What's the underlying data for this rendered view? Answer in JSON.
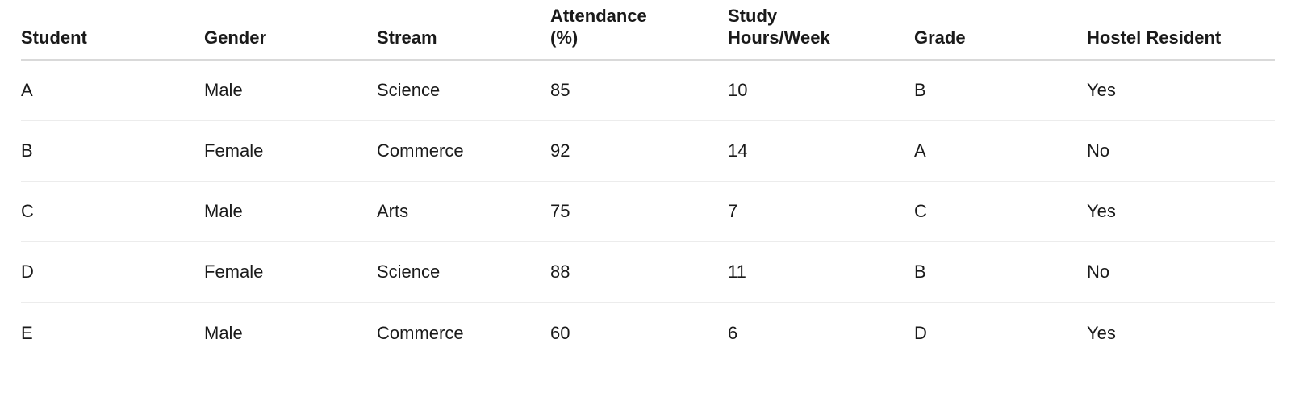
{
  "table": {
    "headers": [
      "Student",
      "Gender",
      "Stream",
      "Attendance\n(%)",
      "Study\nHours/Week",
      "Grade",
      "Hostel Resident"
    ],
    "rows": [
      [
        "A",
        "Male",
        "Science",
        "85",
        "10",
        "B",
        "Yes"
      ],
      [
        "B",
        "Female",
        "Commerce",
        "92",
        "14",
        "A",
        "No"
      ],
      [
        "C",
        "Male",
        "Arts",
        "75",
        "7",
        "C",
        "Yes"
      ],
      [
        "D",
        "Female",
        "Science",
        "88",
        "11",
        "B",
        "No"
      ],
      [
        "E",
        "Male",
        "Commerce",
        "60",
        "6",
        "D",
        "Yes"
      ]
    ]
  }
}
